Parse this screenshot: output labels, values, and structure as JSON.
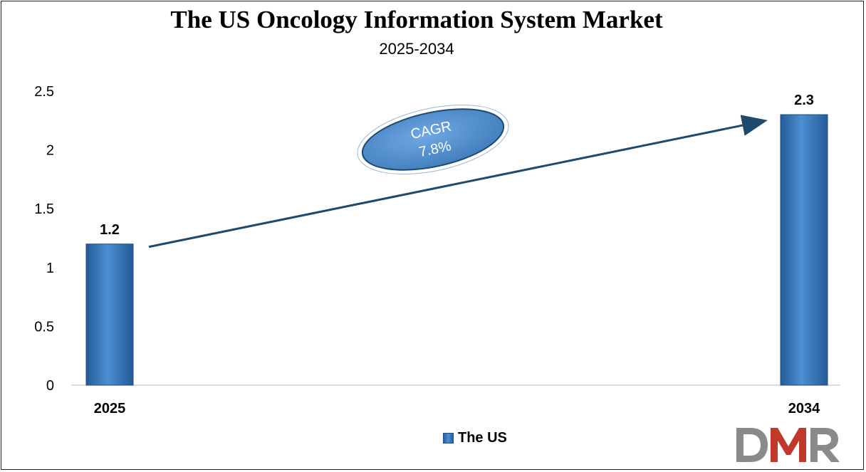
{
  "chart_data": {
    "type": "bar",
    "title": "The US Oncology Information System Market",
    "subtitle": "2025-2034",
    "categories": [
      "2025",
      "2034"
    ],
    "series": [
      {
        "name": "The US",
        "values": [
          1.2,
          2.3
        ],
        "data_labels": [
          "1.2",
          "2.3"
        ],
        "color": "#3a7cc4"
      }
    ],
    "ylim": [
      0,
      2.5
    ],
    "y_ticks": [
      "0",
      "0.5",
      "1",
      "1.5",
      "2",
      "2.5"
    ],
    "grid": false,
    "legend_position": "bottom",
    "annotation": {
      "line1": "CAGR",
      "line2": "7.8%"
    }
  },
  "logo": {
    "text": "DMR",
    "colors": [
      "#8a8a8a",
      "#c0392b"
    ]
  }
}
